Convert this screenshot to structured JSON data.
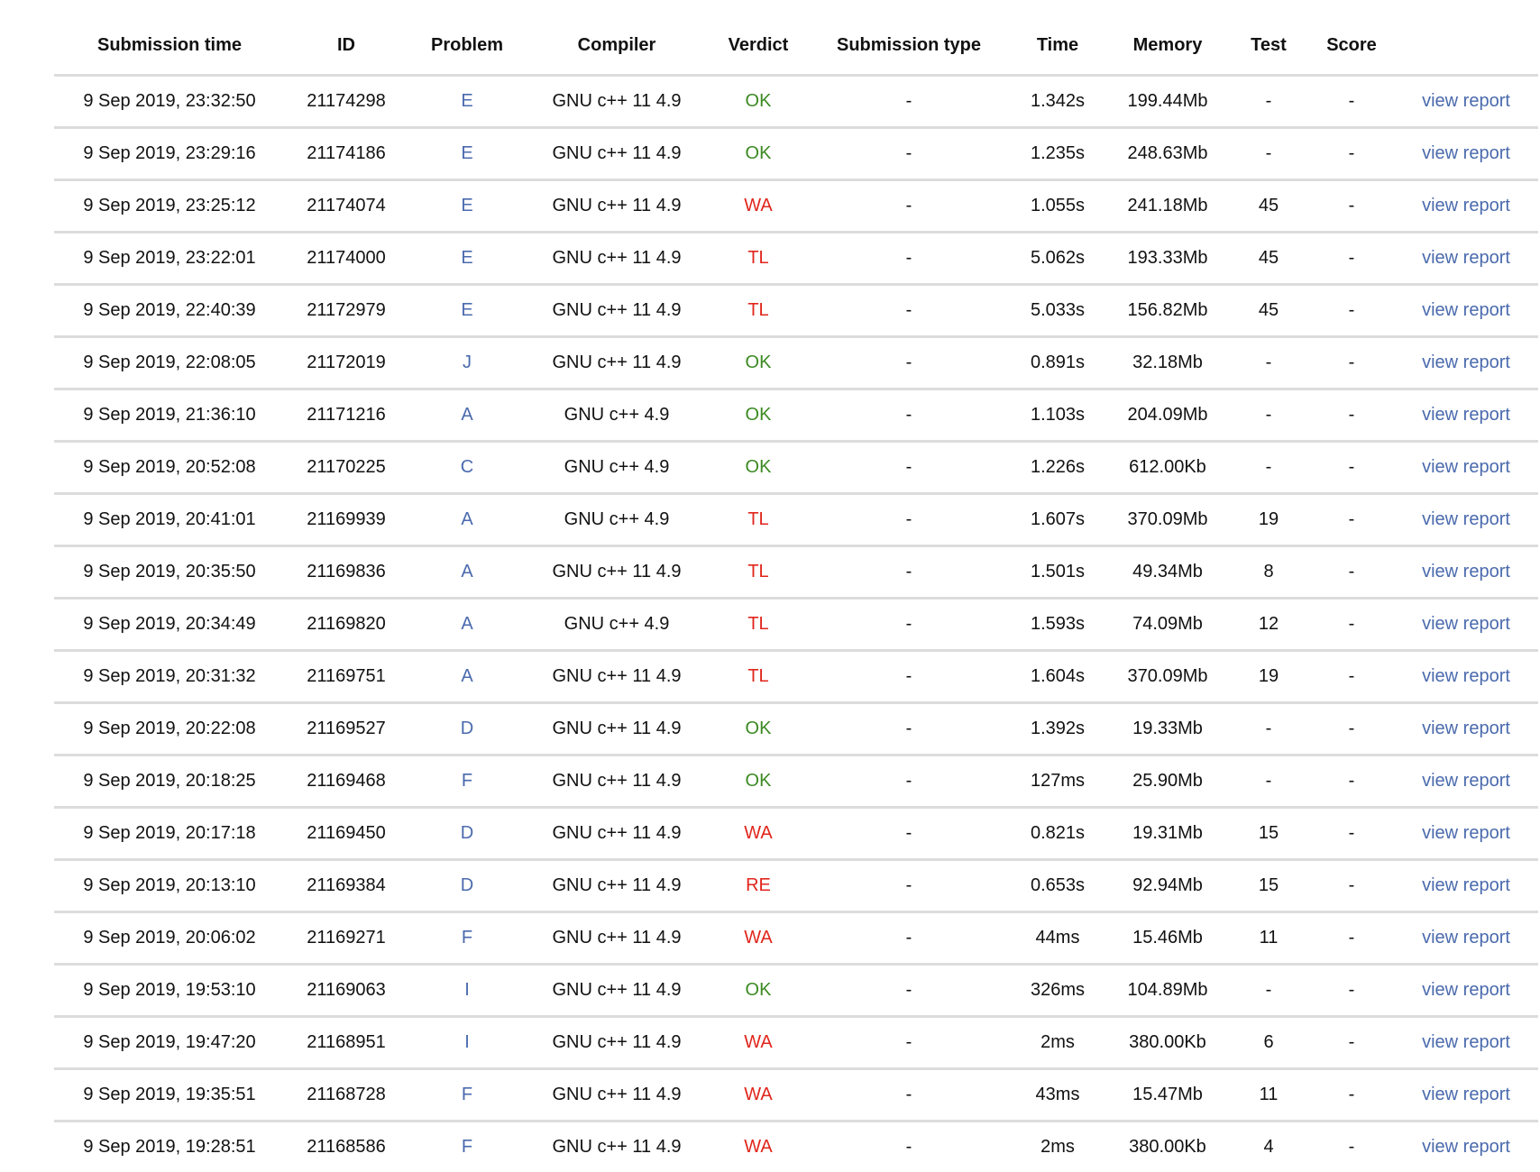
{
  "colors": {
    "accepted": "#3b8a22",
    "rejected": "#e0261c",
    "link": "#4a6aad"
  },
  "headers": [
    "Submission time",
    "ID",
    "Problem",
    "Compiler",
    "Verdict",
    "Submission type",
    "Time",
    "Memory",
    "Test",
    "Score"
  ],
  "rows": [
    {
      "time": "9 Sep 2019, 23:32:50",
      "id": "21174298",
      "problem": "E",
      "compiler": "GNU c++ 11 4.9",
      "verdict": "OK",
      "type": "-",
      "run": "1.342s",
      "memory": "199.44Mb",
      "test": "-",
      "score": "-",
      "link": "view report"
    },
    {
      "time": "9 Sep 2019, 23:29:16",
      "id": "21174186",
      "problem": "E",
      "compiler": "GNU c++ 11 4.9",
      "verdict": "OK",
      "type": "-",
      "run": "1.235s",
      "memory": "248.63Mb",
      "test": "-",
      "score": "-",
      "link": "view report"
    },
    {
      "time": "9 Sep 2019, 23:25:12",
      "id": "21174074",
      "problem": "E",
      "compiler": "GNU c++ 11 4.9",
      "verdict": "WA",
      "type": "-",
      "run": "1.055s",
      "memory": "241.18Mb",
      "test": "45",
      "score": "-",
      "link": "view report"
    },
    {
      "time": "9 Sep 2019, 23:22:01",
      "id": "21174000",
      "problem": "E",
      "compiler": "GNU c++ 11 4.9",
      "verdict": "TL",
      "type": "-",
      "run": "5.062s",
      "memory": "193.33Mb",
      "test": "45",
      "score": "-",
      "link": "view report"
    },
    {
      "time": "9 Sep 2019, 22:40:39",
      "id": "21172979",
      "problem": "E",
      "compiler": "GNU c++ 11 4.9",
      "verdict": "TL",
      "type": "-",
      "run": "5.033s",
      "memory": "156.82Mb",
      "test": "45",
      "score": "-",
      "link": "view report"
    },
    {
      "time": "9 Sep 2019, 22:08:05",
      "id": "21172019",
      "problem": "J",
      "compiler": "GNU c++ 11 4.9",
      "verdict": "OK",
      "type": "-",
      "run": "0.891s",
      "memory": "32.18Mb",
      "test": "-",
      "score": "-",
      "link": "view report"
    },
    {
      "time": "9 Sep 2019, 21:36:10",
      "id": "21171216",
      "problem": "A",
      "compiler": "GNU c++ 4.9",
      "verdict": "OK",
      "type": "-",
      "run": "1.103s",
      "memory": "204.09Mb",
      "test": "-",
      "score": "-",
      "link": "view report"
    },
    {
      "time": "9 Sep 2019, 20:52:08",
      "id": "21170225",
      "problem": "C",
      "compiler": "GNU c++ 4.9",
      "verdict": "OK",
      "type": "-",
      "run": "1.226s",
      "memory": "612.00Kb",
      "test": "-",
      "score": "-",
      "link": "view report"
    },
    {
      "time": "9 Sep 2019, 20:41:01",
      "id": "21169939",
      "problem": "A",
      "compiler": "GNU c++ 4.9",
      "verdict": "TL",
      "type": "-",
      "run": "1.607s",
      "memory": "370.09Mb",
      "test": "19",
      "score": "-",
      "link": "view report"
    },
    {
      "time": "9 Sep 2019, 20:35:50",
      "id": "21169836",
      "problem": "A",
      "compiler": "GNU c++ 11 4.9",
      "verdict": "TL",
      "type": "-",
      "run": "1.501s",
      "memory": "49.34Mb",
      "test": "8",
      "score": "-",
      "link": "view report"
    },
    {
      "time": "9 Sep 2019, 20:34:49",
      "id": "21169820",
      "problem": "A",
      "compiler": "GNU c++ 4.9",
      "verdict": "TL",
      "type": "-",
      "run": "1.593s",
      "memory": "74.09Mb",
      "test": "12",
      "score": "-",
      "link": "view report"
    },
    {
      "time": "9 Sep 2019, 20:31:32",
      "id": "21169751",
      "problem": "A",
      "compiler": "GNU c++ 11 4.9",
      "verdict": "TL",
      "type": "-",
      "run": "1.604s",
      "memory": "370.09Mb",
      "test": "19",
      "score": "-",
      "link": "view report"
    },
    {
      "time": "9 Sep 2019, 20:22:08",
      "id": "21169527",
      "problem": "D",
      "compiler": "GNU c++ 11 4.9",
      "verdict": "OK",
      "type": "-",
      "run": "1.392s",
      "memory": "19.33Mb",
      "test": "-",
      "score": "-",
      "link": "view report"
    },
    {
      "time": "9 Sep 2019, 20:18:25",
      "id": "21169468",
      "problem": "F",
      "compiler": "GNU c++ 11 4.9",
      "verdict": "OK",
      "type": "-",
      "run": "127ms",
      "memory": "25.90Mb",
      "test": "-",
      "score": "-",
      "link": "view report"
    },
    {
      "time": "9 Sep 2019, 20:17:18",
      "id": "21169450",
      "problem": "D",
      "compiler": "GNU c++ 11 4.9",
      "verdict": "WA",
      "type": "-",
      "run": "0.821s",
      "memory": "19.31Mb",
      "test": "15",
      "score": "-",
      "link": "view report"
    },
    {
      "time": "9 Sep 2019, 20:13:10",
      "id": "21169384",
      "problem": "D",
      "compiler": "GNU c++ 11 4.9",
      "verdict": "RE",
      "type": "-",
      "run": "0.653s",
      "memory": "92.94Mb",
      "test": "15",
      "score": "-",
      "link": "view report"
    },
    {
      "time": "9 Sep 2019, 20:06:02",
      "id": "21169271",
      "problem": "F",
      "compiler": "GNU c++ 11 4.9",
      "verdict": "WA",
      "type": "-",
      "run": "44ms",
      "memory": "15.46Mb",
      "test": "11",
      "score": "-",
      "link": "view report"
    },
    {
      "time": "9 Sep 2019, 19:53:10",
      "id": "21169063",
      "problem": "I",
      "compiler": "GNU c++ 11 4.9",
      "verdict": "OK",
      "type": "-",
      "run": "326ms",
      "memory": "104.89Mb",
      "test": "-",
      "score": "-",
      "link": "view report"
    },
    {
      "time": "9 Sep 2019, 19:47:20",
      "id": "21168951",
      "problem": "I",
      "compiler": "GNU c++ 11 4.9",
      "verdict": "WA",
      "type": "-",
      "run": "2ms",
      "memory": "380.00Kb",
      "test": "6",
      "score": "-",
      "link": "view report"
    },
    {
      "time": "9 Sep 2019, 19:35:51",
      "id": "21168728",
      "problem": "F",
      "compiler": "GNU c++ 11 4.9",
      "verdict": "WA",
      "type": "-",
      "run": "43ms",
      "memory": "15.47Mb",
      "test": "11",
      "score": "-",
      "link": "view report"
    },
    {
      "time": "9 Sep 2019, 19:28:51",
      "id": "21168586",
      "problem": "F",
      "compiler": "GNU c++ 11 4.9",
      "verdict": "WA",
      "type": "-",
      "run": "2ms",
      "memory": "380.00Kb",
      "test": "4",
      "score": "-",
      "link": "view report"
    }
  ]
}
